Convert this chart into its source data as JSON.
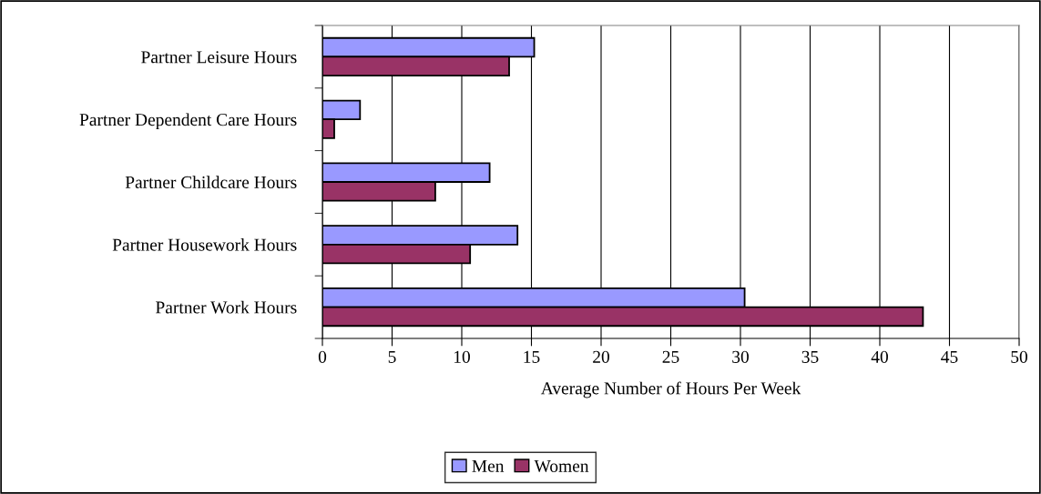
{
  "chart_data": {
    "type": "bar",
    "orientation": "horizontal",
    "xlabel": "Average Number of Hours Per Week",
    "categories": [
      "Partner Leisure Hours",
      "Partner Dependent Care Hours",
      "Partner Childcare Hours",
      "Partner Housework Hours",
      "Partner Work Hours"
    ],
    "series": [
      {
        "name": "Men",
        "color": "#9999ff",
        "values": [
          15.2,
          2.7,
          12.0,
          14.0,
          30.3
        ]
      },
      {
        "name": "Women",
        "color": "#993366",
        "values": [
          13.4,
          0.85,
          8.1,
          10.6,
          43.1
        ]
      }
    ],
    "xlim": [
      0,
      50
    ],
    "xticks": [
      0,
      5,
      10,
      15,
      20,
      25,
      30,
      35,
      40,
      45,
      50
    ],
    "grid": "x",
    "legend": "bottom"
  }
}
